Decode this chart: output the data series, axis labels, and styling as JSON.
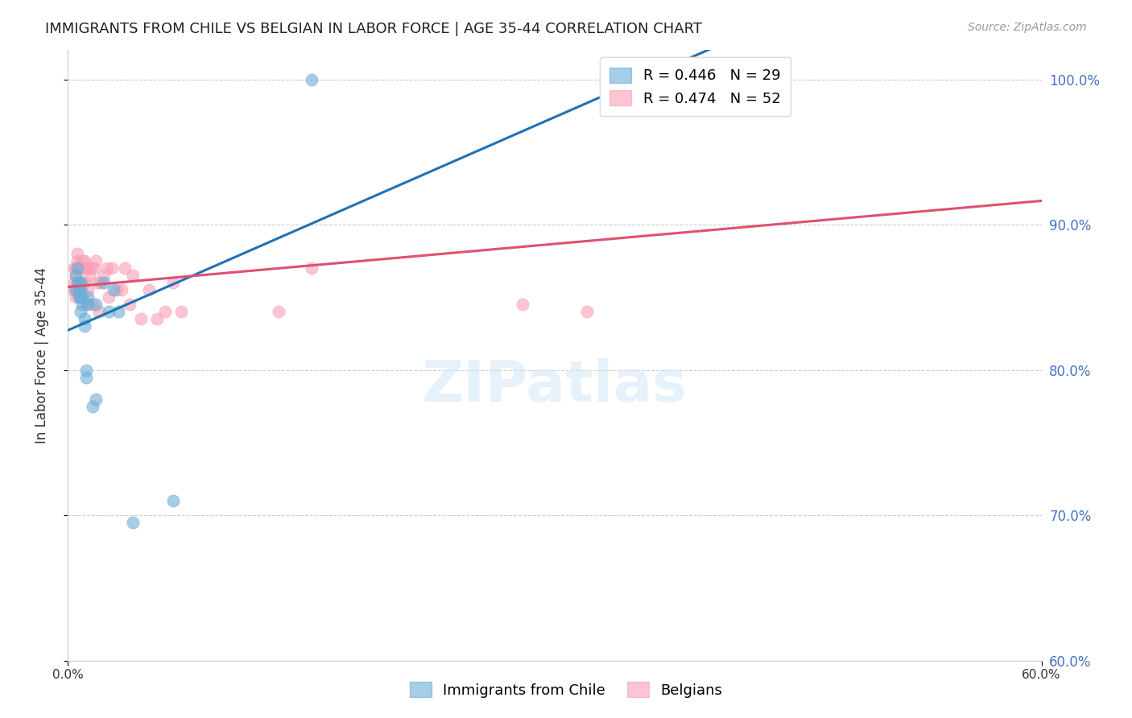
{
  "title": "IMMIGRANTS FROM CHILE VS BELGIAN IN LABOR FORCE | AGE 35-44 CORRELATION CHART",
  "source": "Source: ZipAtlas.com",
  "xlabel": "",
  "ylabel": "In Labor Force | Age 35-44",
  "legend_entries": [
    {
      "label": "R = 0.446   N = 29",
      "color": "#6baed6"
    },
    {
      "label": "R = 0.474   N = 52",
      "color": "#fa9fb5"
    }
  ],
  "legend_bottom": [
    {
      "label": "Immigrants from Chile",
      "color": "#6baed6"
    },
    {
      "label": "Belgians",
      "color": "#fa9fb5"
    }
  ],
  "xlim": [
    0.0,
    0.6
  ],
  "ylim": [
    0.6,
    1.02
  ],
  "yticks": [
    0.6,
    0.7,
    0.8,
    0.9,
    1.0
  ],
  "ytick_labels": [
    "60.0%",
    "70.0%",
    "80.0%",
    "90.0%",
    "100.0%"
  ],
  "xticks": [
    0.0,
    0.1,
    0.2,
    0.3,
    0.4,
    0.5,
    0.6
  ],
  "xtick_labels": [
    "0.0%",
    "",
    "",
    "",
    "",
    "",
    "60.0%"
  ],
  "chile_x": [
    0.005,
    0.005,
    0.006,
    0.006,
    0.007,
    0.007,
    0.007,
    0.008,
    0.008,
    0.008,
    0.008,
    0.009,
    0.009,
    0.01,
    0.01,
    0.011,
    0.011,
    0.012,
    0.012,
    0.015,
    0.017,
    0.017,
    0.022,
    0.025,
    0.028,
    0.031,
    0.04,
    0.065,
    0.15
  ],
  "chile_y": [
    0.855,
    0.865,
    0.86,
    0.87,
    0.85,
    0.855,
    0.86,
    0.84,
    0.85,
    0.855,
    0.86,
    0.845,
    0.85,
    0.83,
    0.835,
    0.795,
    0.8,
    0.845,
    0.85,
    0.775,
    0.78,
    0.845,
    0.86,
    0.84,
    0.855,
    0.84,
    0.695,
    0.71,
    1.0
  ],
  "belgian_x": [
    0.003,
    0.004,
    0.004,
    0.005,
    0.005,
    0.005,
    0.005,
    0.006,
    0.006,
    0.006,
    0.006,
    0.007,
    0.007,
    0.007,
    0.008,
    0.008,
    0.009,
    0.009,
    0.01,
    0.01,
    0.011,
    0.011,
    0.012,
    0.012,
    0.013,
    0.014,
    0.015,
    0.016,
    0.017,
    0.018,
    0.019,
    0.02,
    0.022,
    0.024,
    0.025,
    0.027,
    0.03,
    0.033,
    0.035,
    0.038,
    0.04,
    0.045,
    0.05,
    0.055,
    0.06,
    0.065,
    0.07,
    0.13,
    0.15,
    0.28,
    0.32,
    0.38
  ],
  "belgian_y": [
    0.855,
    0.86,
    0.87,
    0.85,
    0.855,
    0.865,
    0.87,
    0.855,
    0.86,
    0.875,
    0.88,
    0.85,
    0.855,
    0.87,
    0.855,
    0.87,
    0.86,
    0.875,
    0.86,
    0.875,
    0.845,
    0.87,
    0.855,
    0.87,
    0.865,
    0.87,
    0.845,
    0.87,
    0.875,
    0.86,
    0.84,
    0.86,
    0.865,
    0.87,
    0.85,
    0.87,
    0.855,
    0.855,
    0.87,
    0.845,
    0.865,
    0.835,
    0.855,
    0.835,
    0.84,
    0.86,
    0.84,
    0.84,
    0.87,
    0.845,
    0.84,
    0.99
  ],
  "chile_color": "#6baed6",
  "belgian_color": "#fa9fb5",
  "chile_line_color": "#2171b5",
  "belgian_line_color": "#e05070",
  "watermark": "ZIPatlas",
  "background_color": "#ffffff",
  "grid_color": "#cccccc"
}
